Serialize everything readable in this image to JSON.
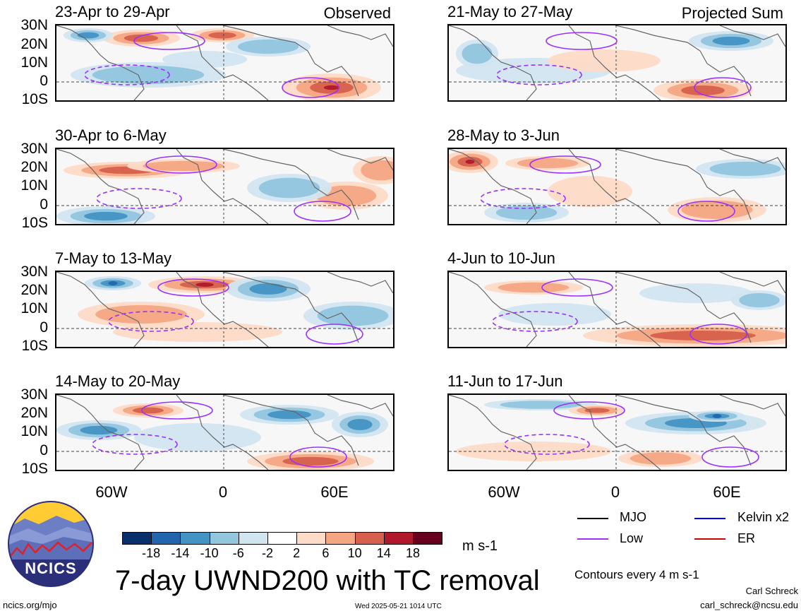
{
  "panels_left": [
    {
      "date": "23-Apr to 29-Apr",
      "tag": "Observed"
    },
    {
      "date": "30-Apr to 6-May",
      "tag": ""
    },
    {
      "date": "7-May to 13-May",
      "tag": ""
    },
    {
      "date": "14-May to 20-May",
      "tag": ""
    }
  ],
  "panels_right": [
    {
      "date": "21-May to 27-May",
      "tag": "Projected Sum"
    },
    {
      "date": "28-May to 3-Jun",
      "tag": ""
    },
    {
      "date": "4-Jun to 10-Jun",
      "tag": ""
    },
    {
      "date": "11-Jun to 17-Jun",
      "tag": ""
    }
  ],
  "lat_labels": [
    "30N",
    "20N",
    "10N",
    "0",
    "10S"
  ],
  "lon_labels": [
    "60W",
    "0",
    "60E"
  ],
  "colorbar": {
    "colors": [
      "#08306b",
      "#2166ac",
      "#4393c3",
      "#92c5de",
      "#d1e5f0",
      "#ffffff",
      "#fddbc7",
      "#f4a582",
      "#d6604d",
      "#b2182b",
      "#67001f"
    ],
    "ticks": [
      "-18",
      "-14",
      "-10",
      "-6",
      "-2",
      "2",
      "6",
      "10",
      "14",
      "18"
    ],
    "units": "m s-1"
  },
  "legend": {
    "mjo": "MJO",
    "low": "Low",
    "kelvin": "Kelvin x2",
    "er": "ER",
    "mjo_color": "#000000",
    "low_color": "#9b30ff",
    "kelvin_color": "#0000ff",
    "er_color": "#cc0000"
  },
  "title": "7-day UWND200 with TC removal",
  "contours_note": "Contours every 4 m s-1",
  "logo_text": "NCICS",
  "footer": {
    "url": "ncics.org/mjo",
    "timestamp": "Wed 2025-05-21 1014 UTC",
    "author": "Carl Schreck",
    "email": "carl_schreck@ncsu.edu"
  }
}
